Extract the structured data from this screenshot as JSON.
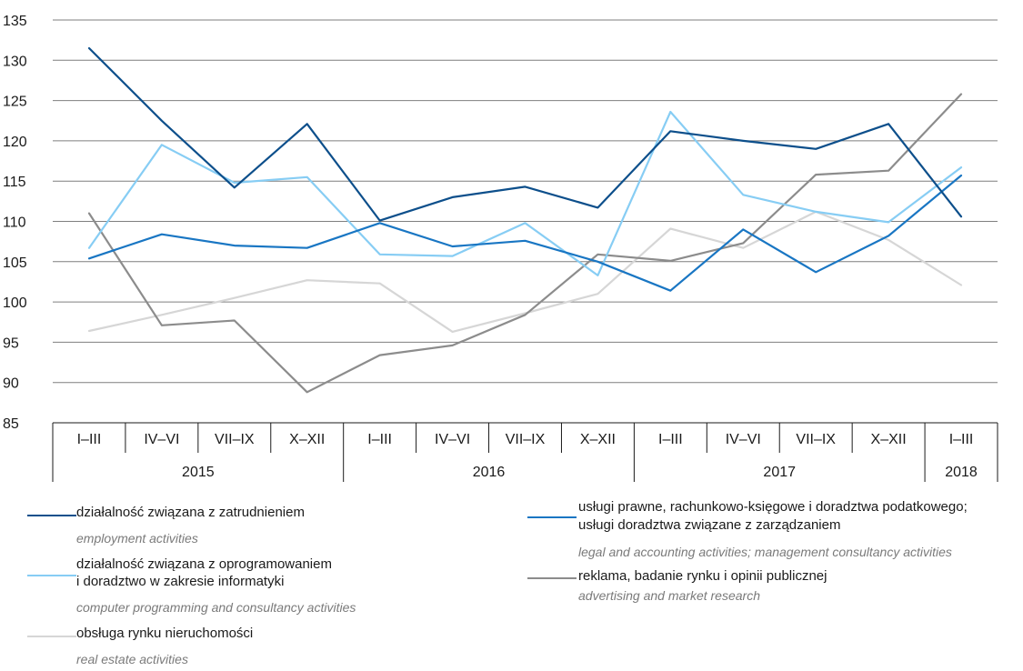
{
  "chart_data": {
    "type": "line",
    "categories": [
      "I–III",
      "IV–VI",
      "VII–IX",
      "X–XII",
      "I–III",
      "IV–VI",
      "VII–IX",
      "X–XII",
      "I–III",
      "IV–VI",
      "VII–IX",
      "X–XII",
      "I–III"
    ],
    "years": [
      {
        "label": "2015",
        "count": 4
      },
      {
        "label": "2016",
        "count": 4
      },
      {
        "label": "2017",
        "count": 4
      },
      {
        "label": "2018",
        "count": 1
      }
    ],
    "ylim": [
      85,
      135
    ],
    "yticks": [
      85,
      90,
      95,
      100,
      105,
      110,
      115,
      120,
      125,
      130,
      135
    ],
    "grid": true,
    "series": [
      {
        "key": "employment",
        "color": "#0d4f8b",
        "values": [
          131.5,
          122.5,
          114.2,
          122.1,
          110.1,
          113.0,
          114.3,
          111.7,
          121.2,
          120.0,
          119.0,
          122.1,
          110.6
        ]
      },
      {
        "key": "legal",
        "color": "#1976c3",
        "values": [
          105.4,
          108.4,
          107.0,
          106.7,
          109.8,
          106.9,
          107.6,
          105.0,
          101.4,
          109.0,
          103.7,
          108.2,
          115.7
        ]
      },
      {
        "key": "computer",
        "color": "#87cdf4",
        "values": [
          106.7,
          119.5,
          114.8,
          115.5,
          105.9,
          105.7,
          109.8,
          103.3,
          123.6,
          113.3,
          111.2,
          109.9,
          116.7
        ]
      },
      {
        "key": "advertising",
        "color": "#8c8c8c",
        "values": [
          111.0,
          97.1,
          97.7,
          88.8,
          93.4,
          94.6,
          98.4,
          105.9,
          105.1,
          107.3,
          115.8,
          116.3,
          125.8
        ]
      },
      {
        "key": "realestate",
        "color": "#d6d6d6",
        "values": [
          96.4,
          98.4,
          100.5,
          102.7,
          102.3,
          96.3,
          98.6,
          101.0,
          109.1,
          106.7,
          111.2,
          107.7,
          102.1
        ]
      }
    ]
  },
  "legend": [
    {
      "key": "employment",
      "color": "#0d4f8b",
      "pl": [
        "działalność związana z zatrudnieniem"
      ],
      "en": "employment activities"
    },
    {
      "key": "computer",
      "color": "#87cdf4",
      "pl": [
        "działalność związana z oprogramowaniem",
        "i doradztwo w zakresie informatyki"
      ],
      "en": "computer programming and consultancy activities"
    },
    {
      "key": "realestate",
      "color": "#d6d6d6",
      "pl": [
        "obsługa rynku nieruchomości"
      ],
      "en": "real estate activities"
    },
    {
      "key": "legal",
      "color": "#1976c3",
      "pl": [
        "usługi prawne, rachunkowo-księgowe i doradztwa podatkowego;",
        "usługi doradztwa związane z zarządzaniem"
      ],
      "en": "legal and accounting activities; management consultancy activities"
    },
    {
      "key": "advertising",
      "color": "#8c8c8c",
      "pl": [
        "reklama, badanie rynku i opinii publicznej"
      ],
      "en": "advertising and market research"
    }
  ]
}
